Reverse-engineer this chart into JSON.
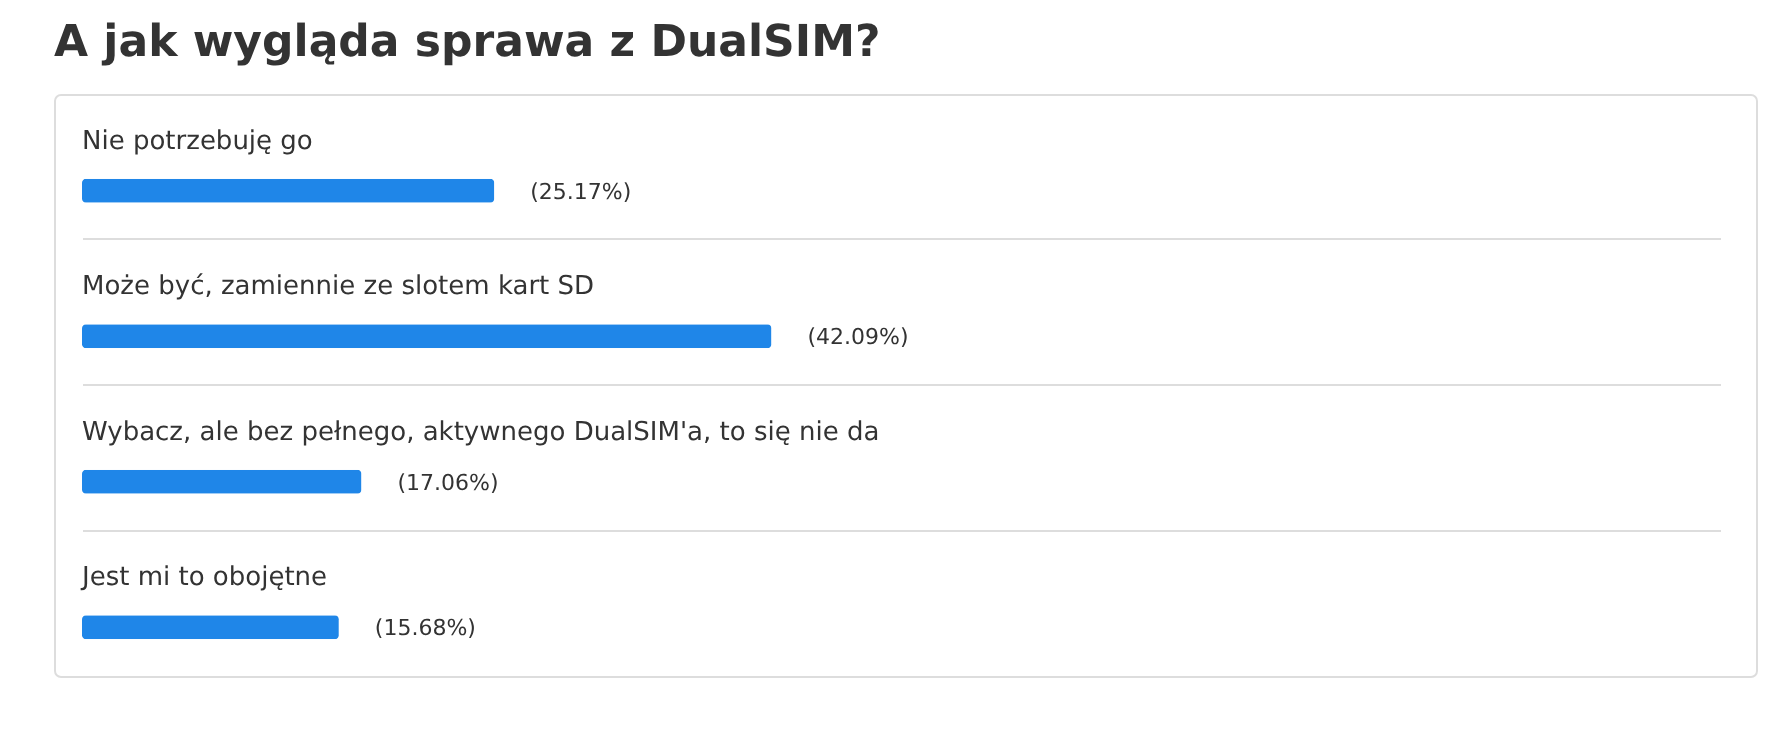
{
  "chart_data": {
    "type": "bar",
    "orientation": "horizontal",
    "title": "A jak wygląda sprawa z DualSIM?",
    "categories": [
      "Nie potrzebuję go",
      "Może być, zamiennie ze slotem kart SD",
      "Wybacz, ale bez pełnego, aktywnego DualSIM'a, to się nie da",
      "Jest mi to obojętne"
    ],
    "values": [
      25.17,
      42.09,
      17.06,
      15.68
    ],
    "value_labels": [
      "(25.17%)",
      "(42.09%)",
      "(17.06%)",
      "(15.68%)"
    ],
    "color": "#1f86e8",
    "xlim": [
      0,
      100
    ],
    "tick_labels": false
  }
}
